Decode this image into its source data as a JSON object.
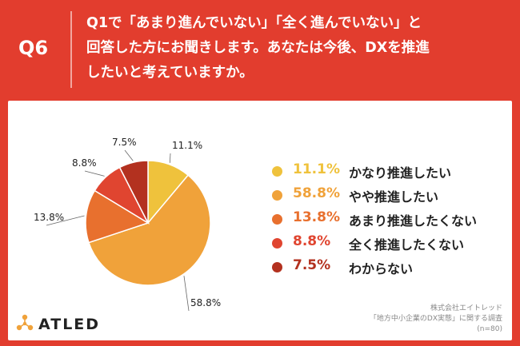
{
  "header": {
    "question_label": "Q6",
    "question_lines": [
      "Q1で「あまり進んでいない」「全く進んでいない」と",
      "回答した方にお聞きします。あなたは今後、DXを推進",
      "したいと考えていますか。"
    ]
  },
  "chart_data": {
    "type": "pie",
    "slices": [
      {
        "label": "かなり推進したい",
        "value": 11.1,
        "value_label": "11.1%",
        "color": "#efc23c"
      },
      {
        "label": "やや推進したい",
        "value": 58.8,
        "value_label": "58.8%",
        "color": "#f0a23a"
      },
      {
        "label": "あまり推進したくない",
        "value": 13.8,
        "value_label": "13.8%",
        "color": "#e8702e"
      },
      {
        "label": "全く推進したくない",
        "value": 8.8,
        "value_label": "8.8%",
        "color": "#e04530"
      },
      {
        "label": "わからない",
        "value": 7.5,
        "value_label": "7.5%",
        "color": "#b3311f"
      }
    ],
    "legend_placement": "right"
  },
  "footer": {
    "company": "株式会社エイトレッド",
    "survey": "「地方中小企業のDX実態」に関する調査",
    "sample": "(n=80)"
  },
  "logo": {
    "text": "ATLED",
    "color": "#f0a23a"
  },
  "colors": {
    "header_bg": "#e23d2e",
    "text": "#222222"
  }
}
